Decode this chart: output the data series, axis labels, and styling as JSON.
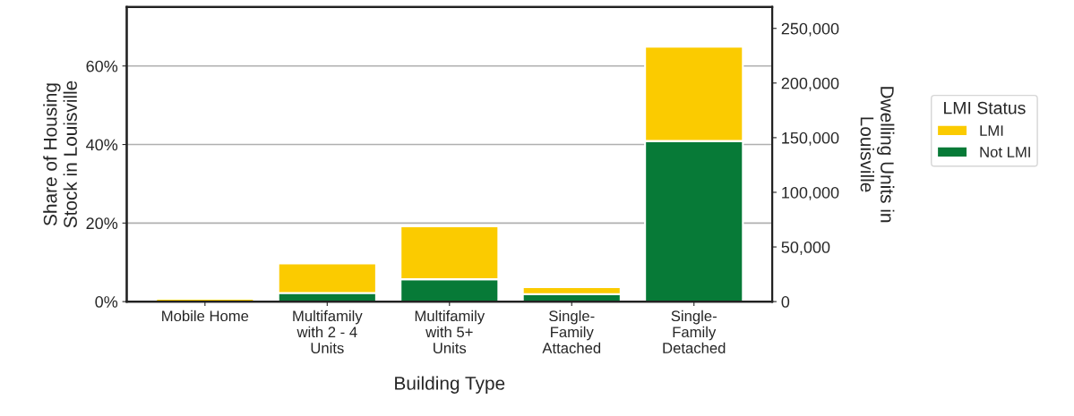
{
  "chart_data": {
    "type": "bar",
    "stacked": true,
    "xlabel": "Building Type",
    "ylabel": "Share of Housing\nStock in Louisville",
    "y2label": "Dwelling Units in\nLouisville",
    "legend_title": "LMI Status",
    "legend": "right",
    "categories": [
      "Mobile Home",
      "Multifamily\nwith 2 - 4\nUnits",
      "Multifamily\nwith 5+\nUnits",
      "Single-\nFamily\nAttached",
      "Single-\nFamily\nDetached"
    ],
    "series": [
      {
        "name": "Not LMI",
        "color": "#077a37",
        "values": [
          0,
          2.2,
          5.7,
          1.9,
          40.9
        ]
      },
      {
        "name": "LMI",
        "color": "#fbcb00",
        "values": [
          0.7,
          7.5,
          13.5,
          1.8,
          24.0
        ]
      }
    ],
    "ylim": [
      0,
      75
    ],
    "yticks": [
      {
        "value": 0,
        "label": "0%"
      },
      {
        "value": 20,
        "label": "20%"
      },
      {
        "value": 40,
        "label": "40%"
      },
      {
        "value": 60,
        "label": "60%"
      }
    ],
    "y2lim": [
      0,
      269500
    ],
    "y2ticks": [
      {
        "value": 0,
        "label": "0"
      },
      {
        "value": 50000,
        "label": "50,000"
      },
      {
        "value": 100000,
        "label": "100,000"
      },
      {
        "value": 150000,
        "label": "150,000"
      },
      {
        "value": 200000,
        "label": "200,000"
      },
      {
        "value": 250000,
        "label": "250,000"
      }
    ],
    "grid": "y"
  }
}
